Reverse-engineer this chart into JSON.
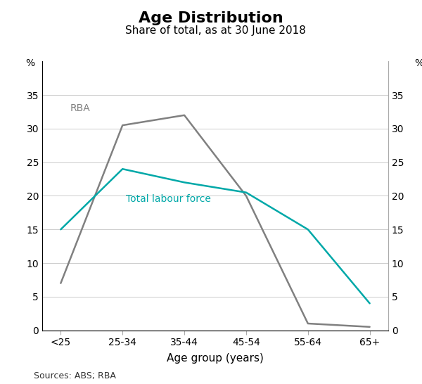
{
  "title": "Age Distribution",
  "subtitle": "Share of total, as at 30 June 2018",
  "xlabel": "Age group (years)",
  "ylabel_left": "%",
  "ylabel_right": "%",
  "categories": [
    "<25",
    "25-34",
    "35-44",
    "45-54",
    "55-64",
    "65+"
  ],
  "rba_values": [
    7,
    30.5,
    32,
    20,
    1,
    0.5
  ],
  "labour_values": [
    15,
    24,
    22,
    20.5,
    15,
    4
  ],
  "rba_color": "#808080",
  "labour_color": "#00A8A8",
  "rba_label": "RBA",
  "labour_label": "Total labour force",
  "ylim": [
    0,
    40
  ],
  "yticks": [
    0,
    5,
    10,
    15,
    20,
    25,
    30,
    35
  ],
  "source_text": "Sources: ABS; RBA",
  "background_color": "#ffffff",
  "title_fontsize": 16,
  "subtitle_fontsize": 11,
  "tick_fontsize": 10,
  "xlabel_fontsize": 11,
  "ylabel_fontsize": 10,
  "annot_fontsize": 10,
  "source_fontsize": 9,
  "linewidth": 1.8
}
